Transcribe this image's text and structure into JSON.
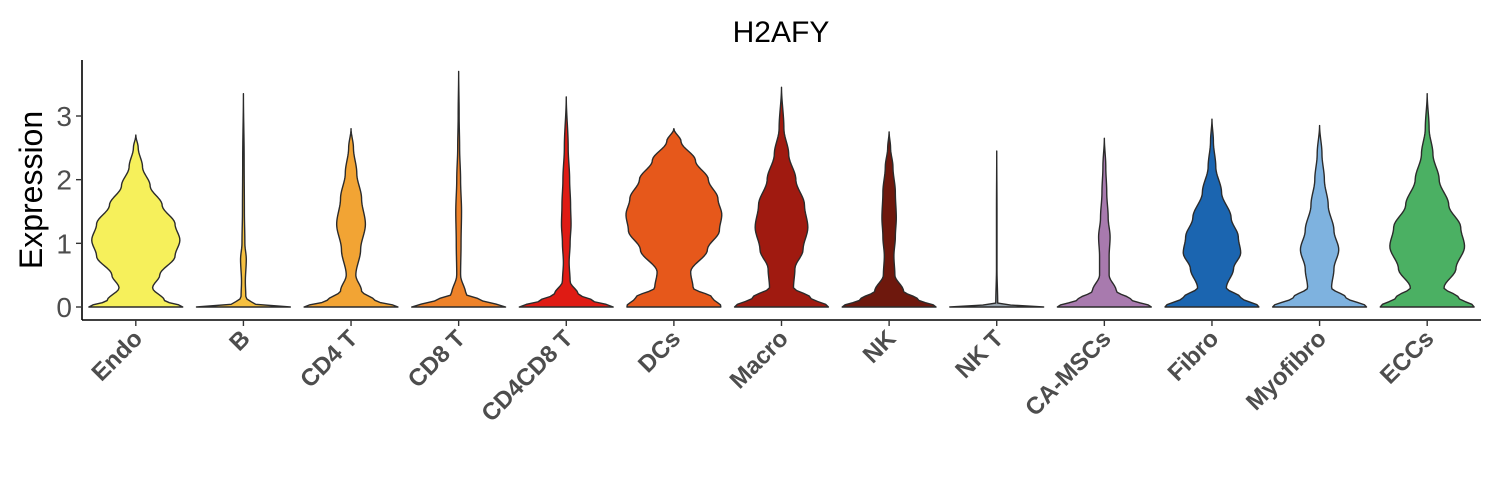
{
  "chart_data": {
    "type": "violin",
    "title": "H2AFY",
    "xlabel": "",
    "ylabel": "Expression",
    "ylim": [
      -0.15,
      3.8
    ],
    "yticks": [
      0,
      1,
      2,
      3
    ],
    "grid": false,
    "legend": "none",
    "categories": [
      {
        "name": "Endo",
        "color": "#F6F05B",
        "max": 2.7,
        "profile": [
          [
            0,
            1.0
          ],
          [
            0.1,
            0.6
          ],
          [
            0.3,
            0.35
          ],
          [
            0.5,
            0.5
          ],
          [
            0.8,
            0.82
          ],
          [
            1.05,
            0.92
          ],
          [
            1.3,
            0.82
          ],
          [
            1.6,
            0.55
          ],
          [
            1.9,
            0.3
          ],
          [
            2.2,
            0.14
          ],
          [
            2.5,
            0.05
          ],
          [
            2.7,
            0
          ]
        ]
      },
      {
        "name": "B",
        "color": "#F5C040",
        "max": 3.35,
        "profile": [
          [
            0,
            1.0
          ],
          [
            0.05,
            0.2
          ],
          [
            0.15,
            0.05
          ],
          [
            0.4,
            0.04
          ],
          [
            0.75,
            0.06
          ],
          [
            1.0,
            0.03
          ],
          [
            1.5,
            0.02
          ],
          [
            2.3,
            0.015
          ],
          [
            3.35,
            0
          ]
        ]
      },
      {
        "name": "CD4 T",
        "color": "#F2A434",
        "max": 2.8,
        "profile": [
          [
            0,
            1.0
          ],
          [
            0.1,
            0.5
          ],
          [
            0.25,
            0.22
          ],
          [
            0.5,
            0.1
          ],
          [
            0.9,
            0.2
          ],
          [
            1.3,
            0.3
          ],
          [
            1.7,
            0.22
          ],
          [
            2.1,
            0.12
          ],
          [
            2.5,
            0.05
          ],
          [
            2.8,
            0
          ]
        ]
      },
      {
        "name": "CD8 T",
        "color": "#EE8229",
        "max": 3.7,
        "profile": [
          [
            0,
            1.0
          ],
          [
            0.1,
            0.5
          ],
          [
            0.2,
            0.15
          ],
          [
            0.5,
            0.04
          ],
          [
            1.0,
            0.05
          ],
          [
            1.5,
            0.06
          ],
          [
            2.0,
            0.04
          ],
          [
            2.5,
            0.02
          ],
          [
            3.0,
            0.01
          ],
          [
            3.7,
            0
          ]
        ]
      },
      {
        "name": "CD4CD8 T",
        "color": "#DF1B14",
        "max": 3.3,
        "profile": [
          [
            0,
            1.0
          ],
          [
            0.1,
            0.55
          ],
          [
            0.2,
            0.25
          ],
          [
            0.4,
            0.08
          ],
          [
            0.7,
            0.06
          ],
          [
            1.0,
            0.08
          ],
          [
            1.3,
            0.1
          ],
          [
            1.6,
            0.09
          ],
          [
            2.0,
            0.07
          ],
          [
            2.5,
            0.04
          ],
          [
            3.3,
            0
          ]
        ]
      },
      {
        "name": "DCs",
        "color": "#E6581B",
        "max": 2.8,
        "profile": [
          [
            0,
            1.0
          ],
          [
            0.15,
            0.8
          ],
          [
            0.3,
            0.4
          ],
          [
            0.55,
            0.35
          ],
          [
            0.9,
            0.7
          ],
          [
            1.2,
            0.95
          ],
          [
            1.45,
            1.0
          ],
          [
            1.7,
            0.92
          ],
          [
            2.0,
            0.72
          ],
          [
            2.3,
            0.45
          ],
          [
            2.6,
            0.15
          ],
          [
            2.8,
            0
          ]
        ]
      },
      {
        "name": "Macro",
        "color": "#A01A10",
        "max": 3.45,
        "profile": [
          [
            0,
            1.0
          ],
          [
            0.15,
            0.6
          ],
          [
            0.3,
            0.25
          ],
          [
            0.6,
            0.28
          ],
          [
            0.9,
            0.45
          ],
          [
            1.25,
            0.55
          ],
          [
            1.6,
            0.48
          ],
          [
            2.0,
            0.3
          ],
          [
            2.4,
            0.15
          ],
          [
            2.8,
            0.05
          ],
          [
            3.45,
            0
          ]
        ]
      },
      {
        "name": "NK",
        "color": "#6E180D",
        "max": 2.75,
        "profile": [
          [
            0,
            1.0
          ],
          [
            0.12,
            0.6
          ],
          [
            0.25,
            0.3
          ],
          [
            0.5,
            0.12
          ],
          [
            0.8,
            0.1
          ],
          [
            1.1,
            0.13
          ],
          [
            1.4,
            0.15
          ],
          [
            1.8,
            0.13
          ],
          [
            2.2,
            0.08
          ],
          [
            2.5,
            0.03
          ],
          [
            2.75,
            0
          ]
        ]
      },
      {
        "name": "NK T",
        "color": "#9AA5AE",
        "max": 2.45,
        "profile": [
          [
            0,
            1.0
          ],
          [
            0.02,
            0.4
          ],
          [
            0.05,
            0.02
          ],
          [
            0.6,
            0.005
          ],
          [
            1.5,
            0.005
          ],
          [
            2.45,
            0
          ]
        ]
      },
      {
        "name": "CA-MSCs",
        "color": "#A87AAE",
        "max": 2.65,
        "profile": [
          [
            0,
            1.0
          ],
          [
            0.12,
            0.55
          ],
          [
            0.25,
            0.25
          ],
          [
            0.5,
            0.1
          ],
          [
            0.8,
            0.1
          ],
          [
            1.1,
            0.12
          ],
          [
            1.4,
            0.08
          ],
          [
            1.8,
            0.05
          ],
          [
            2.2,
            0.03
          ],
          [
            2.65,
            0
          ]
        ]
      },
      {
        "name": "Fibro",
        "color": "#1B65B0",
        "max": 2.95,
        "profile": [
          [
            0,
            1.0
          ],
          [
            0.15,
            0.6
          ],
          [
            0.3,
            0.3
          ],
          [
            0.6,
            0.45
          ],
          [
            0.85,
            0.6
          ],
          [
            1.1,
            0.55
          ],
          [
            1.4,
            0.4
          ],
          [
            1.8,
            0.2
          ],
          [
            2.2,
            0.08
          ],
          [
            2.6,
            0.03
          ],
          [
            2.95,
            0
          ]
        ]
      },
      {
        "name": "Myofibro",
        "color": "#7EB2DF",
        "max": 2.85,
        "profile": [
          [
            0,
            1.0
          ],
          [
            0.15,
            0.55
          ],
          [
            0.3,
            0.25
          ],
          [
            0.6,
            0.3
          ],
          [
            0.9,
            0.4
          ],
          [
            1.2,
            0.3
          ],
          [
            1.6,
            0.18
          ],
          [
            2.0,
            0.1
          ],
          [
            2.4,
            0.05
          ],
          [
            2.85,
            0
          ]
        ]
      },
      {
        "name": "ECCs",
        "color": "#4BB063",
        "max": 3.35,
        "profile": [
          [
            0,
            1.0
          ],
          [
            0.15,
            0.65
          ],
          [
            0.3,
            0.35
          ],
          [
            0.6,
            0.6
          ],
          [
            0.95,
            0.78
          ],
          [
            1.25,
            0.7
          ],
          [
            1.6,
            0.45
          ],
          [
            2.0,
            0.25
          ],
          [
            2.4,
            0.12
          ],
          [
            2.8,
            0.04
          ],
          [
            3.35,
            0
          ]
        ]
      }
    ]
  }
}
